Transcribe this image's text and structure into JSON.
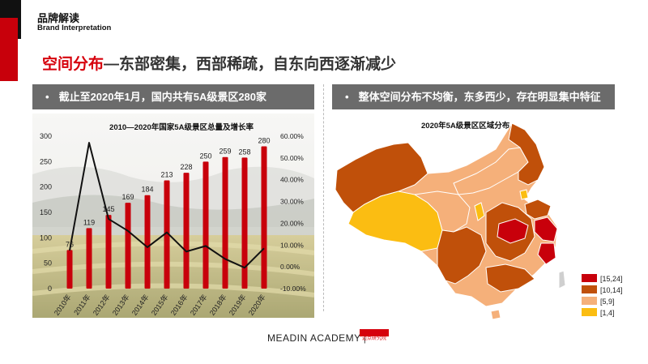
{
  "brand": {
    "title_cn": "品牌解读",
    "title_en": "Brand Interpretation"
  },
  "headline": {
    "accent": "空间分布",
    "rest": "—东部密集，西部稀疏，自东向西逐渐减少"
  },
  "left_panel": {
    "header": "截止至2020年1月，国内共有5A级景区280家"
  },
  "right_panel": {
    "header": "整体空间分布不均衡，东多西少，存在明显集中特征"
  },
  "bullet": "•",
  "chart_data": [
    {
      "type": "bar",
      "title": "2010—2020年国家5A级景区总量及增长率",
      "categories": [
        "2010年",
        "2011年",
        "2012年",
        "2013年",
        "2014年",
        "2015年",
        "2016年",
        "2017年",
        "2018年",
        "2019年",
        "2020年"
      ],
      "series": [
        {
          "values": [
            76,
            119,
            145,
            169,
            184,
            213,
            228,
            250,
            259,
            258,
            280
          ]
        },
        {
          "type": "line",
          "axis": "right",
          "values": [
            7.5,
            57.0,
            22.0,
            16.5,
            9.0,
            15.8,
            7.0,
            9.6,
            3.6,
            -0.4,
            8.5
          ]
        }
      ],
      "ylim": [
        0,
        300
      ],
      "yticks": [
        "0",
        "50",
        "100",
        "150",
        "200",
        "250",
        "300"
      ],
      "y2lim": [
        -10,
        60
      ],
      "y2ticks": [
        "-10.00%",
        "0.00%",
        "10.00%",
        "20.00%",
        "30.00%",
        "40.00%",
        "50.00%",
        "60.00%"
      ],
      "bar_color": "#c8000b",
      "line_color": "#111111"
    },
    {
      "type": "map",
      "title": "2020年5A级景区区域分布",
      "legend": [
        {
          "label": "[15,24]",
          "color": "#c8000b"
        },
        {
          "label": "[10,14]",
          "color": "#c0500a"
        },
        {
          "label": "[5,9]",
          "color": "#f5b07a"
        },
        {
          "label": "[1,4]",
          "color": "#fbbd12"
        }
      ]
    }
  ],
  "footer": {
    "text": "MEADIN ACADEMY",
    "separator": "|",
    "logo_text": "迈点研究院"
  }
}
